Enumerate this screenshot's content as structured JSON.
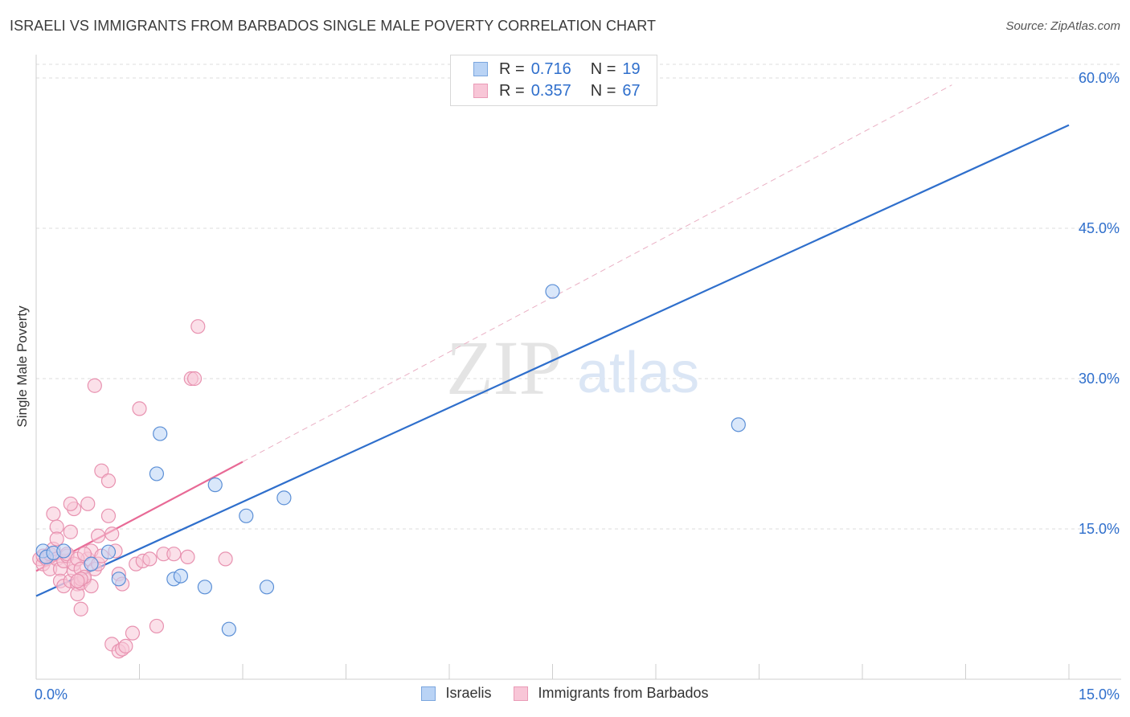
{
  "chart_data": {
    "type": "scatter",
    "title": "ISRAELI VS IMMIGRANTS FROM BARBADOS SINGLE MALE POVERTY CORRELATION CHART",
    "source": "Source: ZipAtlas.com",
    "xlabel": "",
    "ylabel": "Single Male Poverty",
    "xlim": [
      0,
      15
    ],
    "ylim": [
      0,
      60
    ],
    "x_tick_labels": [
      "0.0%",
      "15.0%"
    ],
    "y_ticks": [
      {
        "value": 15,
        "label": "15.0%"
      },
      {
        "value": 30,
        "label": "30.0%"
      },
      {
        "value": 45,
        "label": "45.0%"
      },
      {
        "value": 60,
        "label": "60.0%"
      }
    ],
    "watermark": {
      "zip": "ZIP",
      "atlas": "atlas"
    },
    "legend_stats": {
      "r_label": "R =",
      "n_label": "N =",
      "rows": [
        {
          "series": "Israelis",
          "r": "0.716",
          "n": "19"
        },
        {
          "series": "Immigrants from Barbados",
          "r": "0.357",
          "n": "67"
        }
      ]
    },
    "series": [
      {
        "name": "Israelis",
        "color": "#5b8fd6",
        "fill": "#b9d3f5",
        "trend": {
          "x1": 0,
          "y1": 8.3,
          "x2": 15,
          "y2": 55.3,
          "color": "#2f6fcc",
          "dashed": false
        },
        "points": [
          [
            0.1,
            12.8
          ],
          [
            0.15,
            12.2
          ],
          [
            0.25,
            12.6
          ],
          [
            0.4,
            12.8
          ],
          [
            0.8,
            11.5
          ],
          [
            1.05,
            12.7
          ],
          [
            1.2,
            10.0
          ],
          [
            1.75,
            20.5
          ],
          [
            1.8,
            24.5
          ],
          [
            2.0,
            10.0
          ],
          [
            2.1,
            10.3
          ],
          [
            2.45,
            9.2
          ],
          [
            2.6,
            19.4
          ],
          [
            2.8,
            5.0
          ],
          [
            3.05,
            16.3
          ],
          [
            3.35,
            9.2
          ],
          [
            3.6,
            18.1
          ],
          [
            7.5,
            38.7
          ],
          [
            10.2,
            25.4
          ]
        ]
      },
      {
        "name": "Immigrants from Barbados",
        "color": "#e892b0",
        "fill": "#f8c6d7",
        "trend": {
          "x1": 0,
          "y1": 10.8,
          "x2": 3.0,
          "y2": 21.7,
          "color": "#e86a96",
          "dashed": false
        },
        "trend_extension": {
          "x1": 3.0,
          "y1": 21.7,
          "x2": 13.3,
          "y2": 59.3,
          "color": "#eab0c4",
          "dashed": true
        },
        "points": [
          [
            0.05,
            12.0
          ],
          [
            0.1,
            11.5
          ],
          [
            0.1,
            12.3
          ],
          [
            0.15,
            12.0
          ],
          [
            0.2,
            11.0
          ],
          [
            0.2,
            12.5
          ],
          [
            0.25,
            13.0
          ],
          [
            0.25,
            16.5
          ],
          [
            0.3,
            15.2
          ],
          [
            0.3,
            14.0
          ],
          [
            0.3,
            12.0
          ],
          [
            0.35,
            11.0
          ],
          [
            0.35,
            9.8
          ],
          [
            0.4,
            9.3
          ],
          [
            0.4,
            11.8
          ],
          [
            0.45,
            12.3
          ],
          [
            0.45,
            12.5
          ],
          [
            0.5,
            14.7
          ],
          [
            0.55,
            17.0
          ],
          [
            0.5,
            9.8
          ],
          [
            0.55,
            10.8
          ],
          [
            0.6,
            9.5
          ],
          [
            0.6,
            8.5
          ],
          [
            0.65,
            7.0
          ],
          [
            0.65,
            9.6
          ],
          [
            0.7,
            10.0
          ],
          [
            0.75,
            12.0
          ],
          [
            0.8,
            12.8
          ],
          [
            0.8,
            9.3
          ],
          [
            0.85,
            11.0
          ],
          [
            0.9,
            11.5
          ],
          [
            0.95,
            12.3
          ],
          [
            0.5,
            17.5
          ],
          [
            0.55,
            11.5
          ],
          [
            0.6,
            12.0
          ],
          [
            0.65,
            11.0
          ],
          [
            0.7,
            10.2
          ],
          [
            0.75,
            17.5
          ],
          [
            0.85,
            29.3
          ],
          [
            0.65,
            10.0
          ],
          [
            0.6,
            9.8
          ],
          [
            0.7,
            12.5
          ],
          [
            0.9,
            14.3
          ],
          [
            0.95,
            20.8
          ],
          [
            1.05,
            16.3
          ],
          [
            1.1,
            14.5
          ],
          [
            1.15,
            12.8
          ],
          [
            1.2,
            10.5
          ],
          [
            1.25,
            9.5
          ],
          [
            1.05,
            19.8
          ],
          [
            1.1,
            3.5
          ],
          [
            1.2,
            2.8
          ],
          [
            1.25,
            3.0
          ],
          [
            1.3,
            3.3
          ],
          [
            1.4,
            4.6
          ],
          [
            1.45,
            11.5
          ],
          [
            1.55,
            11.8
          ],
          [
            1.65,
            12.0
          ],
          [
            1.75,
            5.3
          ],
          [
            1.85,
            12.5
          ],
          [
            2.0,
            12.5
          ],
          [
            2.2,
            12.2
          ],
          [
            2.25,
            30.0
          ],
          [
            2.3,
            30.0
          ],
          [
            2.35,
            35.2
          ],
          [
            2.75,
            12.0
          ],
          [
            1.5,
            27.0
          ]
        ]
      }
    ]
  }
}
